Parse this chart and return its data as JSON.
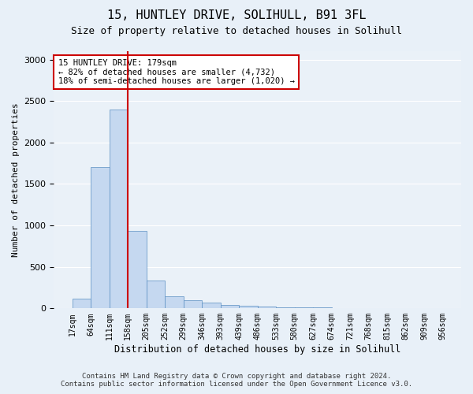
{
  "title": "15, HUNTLEY DRIVE, SOLIHULL, B91 3FL",
  "subtitle": "Size of property relative to detached houses in Solihull",
  "xlabel": "Distribution of detached houses by size in Solihull",
  "ylabel": "Number of detached properties",
  "footer_line1": "Contains HM Land Registry data © Crown copyright and database right 2024.",
  "footer_line2": "Contains public sector information licensed under the Open Government Licence v3.0.",
  "annotation_title": "15 HUNTLEY DRIVE: 179sqm",
  "annotation_line1": "← 82% of detached houses are smaller (4,732)",
  "annotation_line2": "18% of semi-detached houses are larger (1,020) →",
  "bar_color": "#c5d8f0",
  "bar_edge_color": "#5a8fc2",
  "vline_color": "#cc0000",
  "annotation_box_color": "#cc0000",
  "ylim": [
    0,
    3100
  ],
  "yticks": [
    0,
    500,
    1000,
    1500,
    2000,
    2500,
    3000
  ],
  "tick_labels": [
    "17sqm",
    "64sqm",
    "111sqm",
    "158sqm",
    "205sqm",
    "252sqm",
    "299sqm",
    "346sqm",
    "393sqm",
    "439sqm",
    "486sqm",
    "533sqm",
    "580sqm",
    "627sqm",
    "674sqm",
    "721sqm",
    "768sqm",
    "815sqm",
    "862sqm",
    "909sqm",
    "956sqm"
  ],
  "values": [
    120,
    1700,
    2400,
    930,
    340,
    150,
    95,
    65,
    45,
    30,
    20,
    15,
    10,
    8,
    6,
    5,
    3,
    3,
    2,
    2
  ],
  "background_color": "#e8f0f8",
  "plot_bg_color": "#eaf1f8",
  "vline_x": 2.5
}
